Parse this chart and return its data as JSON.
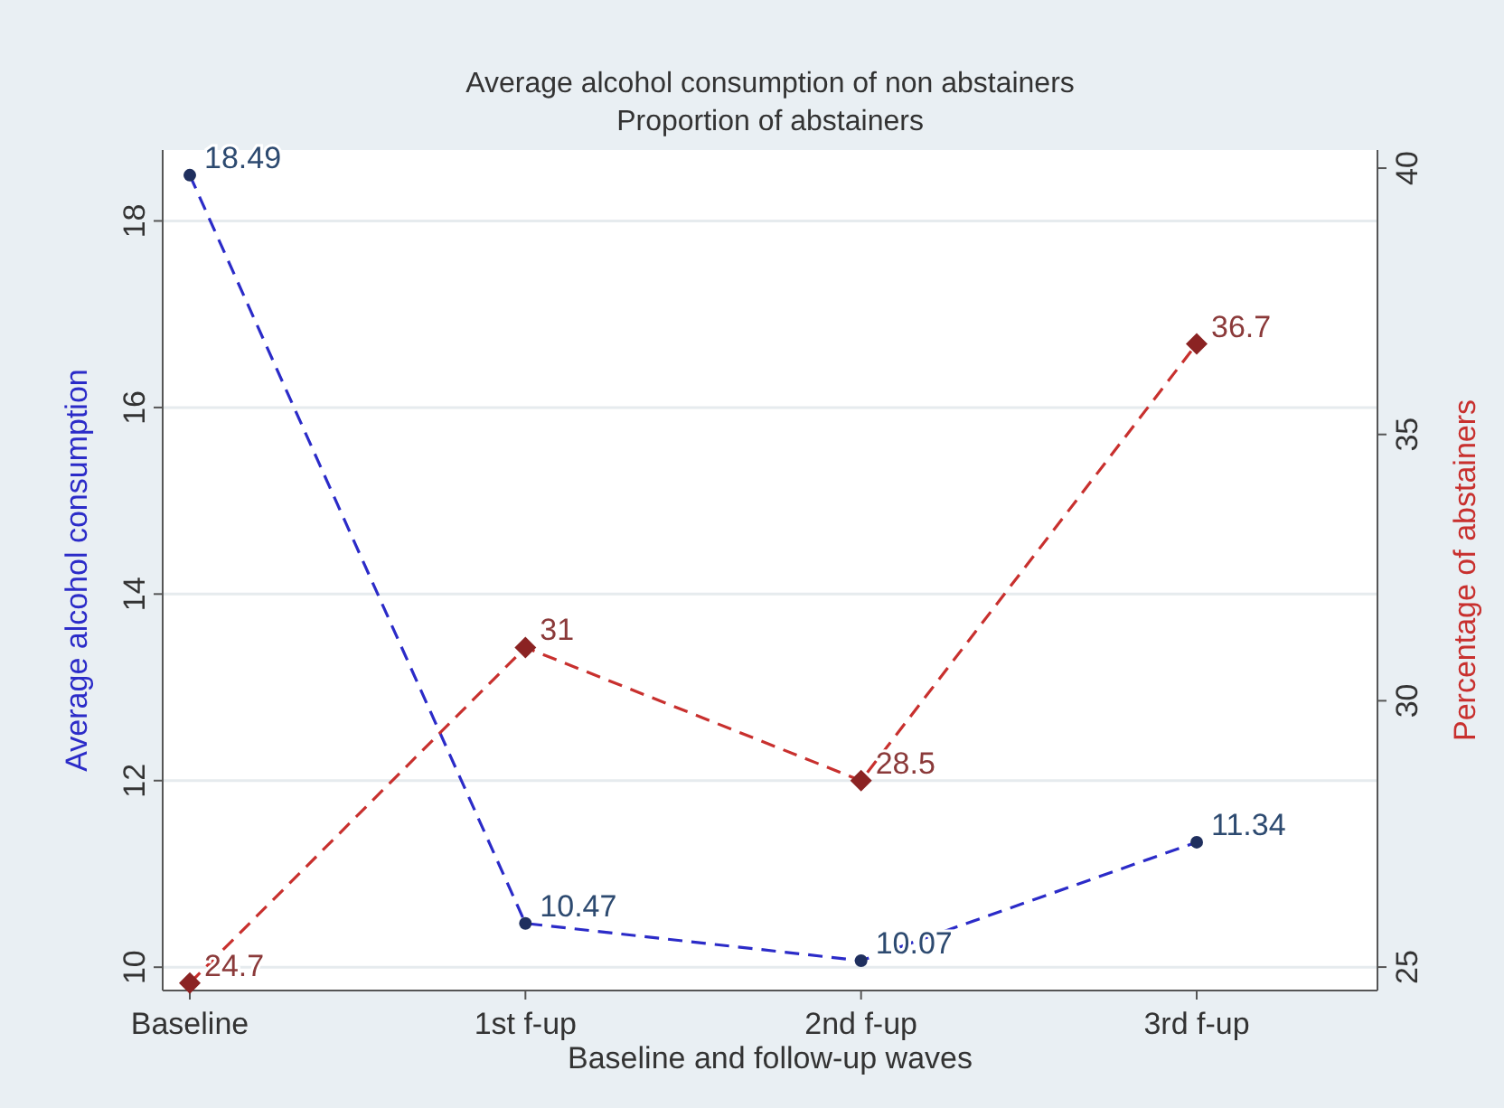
{
  "chart_data": {
    "type": "line",
    "title": "Average alcohol consumption of non abstainers",
    "subtitle": "Proportion of abstainers",
    "xlabel": "Baseline and follow-up waves",
    "ylabel": "Average alcohol consumption",
    "y2label": "Percentage of abstainers",
    "categories": [
      "Baseline",
      "1st f-up",
      "2nd f-up",
      "3rd f-up"
    ],
    "series": [
      {
        "color": "#2b2bc8",
        "values": [
          18.49,
          10.47,
          10.07,
          11.34
        ],
        "marker": "circle",
        "line_style": "dashed"
      },
      {
        "color": "#c8302e",
        "values": [
          24.7,
          31,
          28.5,
          36.7
        ],
        "marker": "diamond",
        "line_style": "dashed",
        "axis": "y2"
      }
    ],
    "ylim": [
      9.75,
      18.76
    ],
    "yticks": [
      10,
      12,
      14,
      16,
      18
    ],
    "y2lim": [
      24.56,
      40.34
    ],
    "y2ticks": [
      25,
      30,
      35,
      40
    ],
    "data_labels": true,
    "grid": "y"
  }
}
